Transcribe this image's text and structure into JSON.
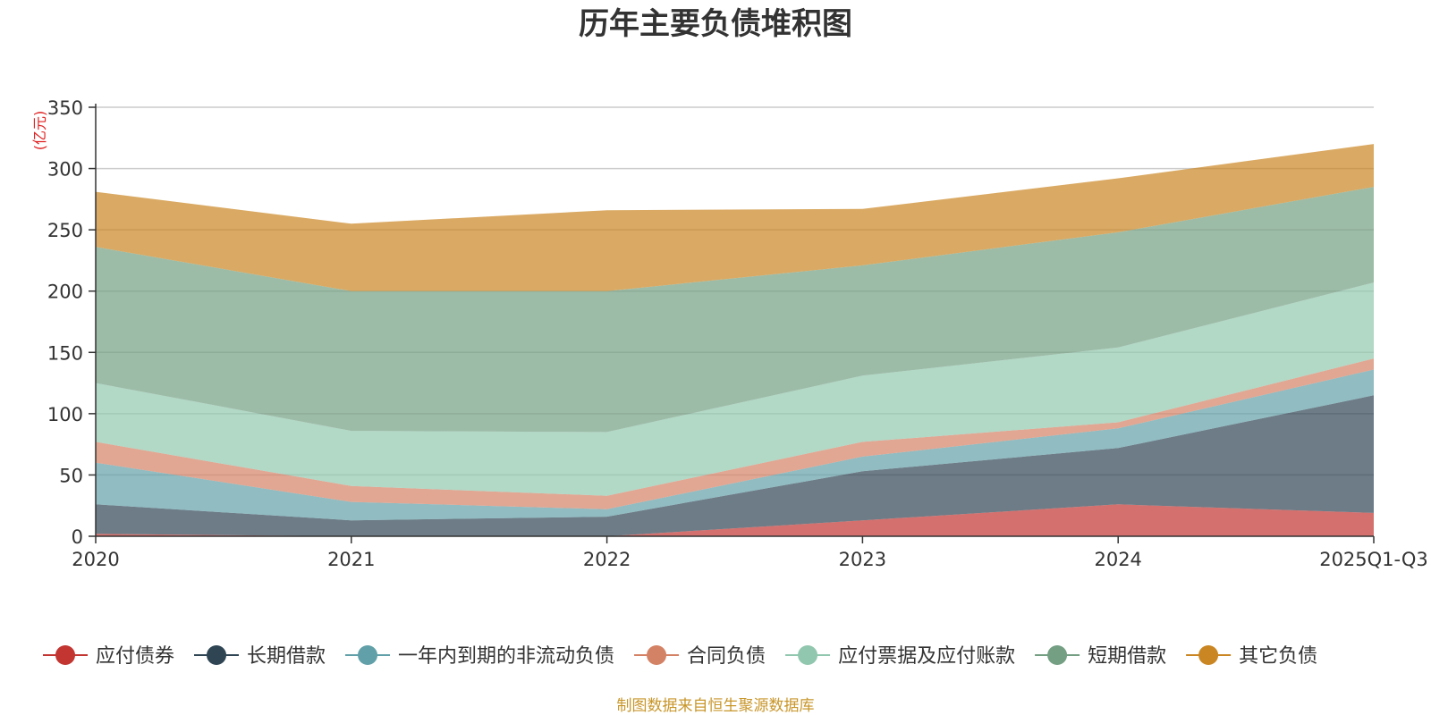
{
  "chart_data": {
    "type": "area",
    "stacked": true,
    "title": "历年主要负债堆积图",
    "unit_label": "(亿元)",
    "xlabel": "",
    "ylabel": "(亿元)",
    "ylim": [
      0,
      350
    ],
    "yticks": [
      0,
      50,
      100,
      150,
      200,
      250,
      300,
      350
    ],
    "grid": true,
    "legend_position": "bottom",
    "categories": [
      "2020",
      "2021",
      "2022",
      "2023",
      "2024",
      "2025Q1-Q3"
    ],
    "series": [
      {
        "name": "应付债券",
        "values": [
          2,
          0,
          0,
          13,
          26,
          19
        ]
      },
      {
        "name": "长期借款",
        "values": [
          24,
          13,
          16,
          40,
          46,
          96
        ]
      },
      {
        "name": "一年内到期的非流动负债",
        "values": [
          34,
          15,
          6,
          12,
          16,
          21
        ]
      },
      {
        "name": "合同负债",
        "values": [
          17,
          13,
          11,
          12,
          5,
          9
        ]
      },
      {
        "name": "应付票据及应付账款",
        "values": [
          48,
          45,
          52,
          54,
          61,
          62
        ]
      },
      {
        "name": "短期借款",
        "values": [
          111,
          114,
          115,
          90,
          94,
          78
        ]
      },
      {
        "name": "其它负债",
        "values": [
          45,
          55,
          66,
          46,
          44,
          35
        ]
      }
    ],
    "source_note": "制图数据来自恒生聚源数据库"
  },
  "colors": {
    "series": [
      "#c23531",
      "#2f4554",
      "#61a0a8",
      "#d48265",
      "#91c7ae",
      "#749f83",
      "#ca8622"
    ],
    "area_opacity": 0.7,
    "grid": "#cccccc",
    "axis": "#333333"
  }
}
